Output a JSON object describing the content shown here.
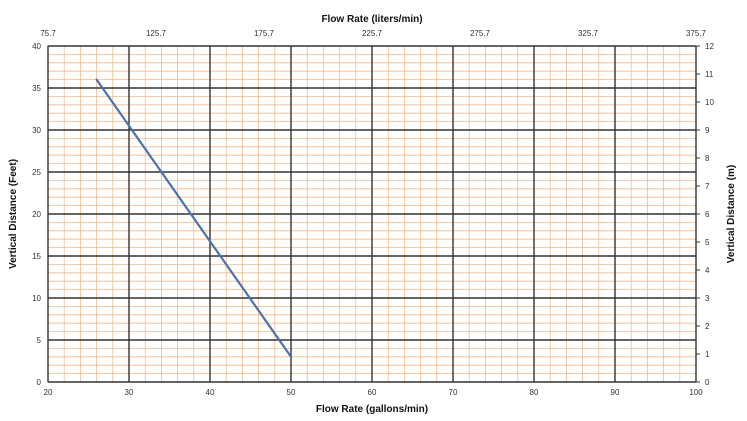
{
  "chart_data": {
    "type": "line",
    "x_bottom": {
      "label": "Flow Rate (gallons/min)",
      "range": [
        20,
        100
      ],
      "ticks": [
        20,
        30,
        40,
        50,
        60,
        70,
        80,
        90,
        100
      ]
    },
    "x_top": {
      "label": "Flow Rate (liters/min)",
      "tick_labels": [
        "75.7",
        "125.7",
        "175.7",
        "225.7",
        "275.7",
        "325.7",
        "375.7"
      ]
    },
    "y_left": {
      "label": "Vertical Distance (Feet)",
      "range": [
        0,
        40
      ],
      "ticks": [
        0,
        5,
        10,
        15,
        20,
        25,
        30,
        35,
        40
      ]
    },
    "y_right": {
      "label": "Vertical Distance (m)",
      "range": [
        0,
        12
      ],
      "ticks": [
        0,
        1,
        2,
        3,
        4,
        5,
        6,
        7,
        8,
        9,
        10,
        11,
        12
      ]
    },
    "grid": {
      "major": true,
      "minor": true,
      "major_color": "#333333",
      "minor_color": "#f5b98a"
    },
    "series": [
      {
        "color": "#4a72b0",
        "points": [
          {
            "x": 26,
            "y": 36
          },
          {
            "x": 50,
            "y": 3
          }
        ]
      }
    ]
  }
}
